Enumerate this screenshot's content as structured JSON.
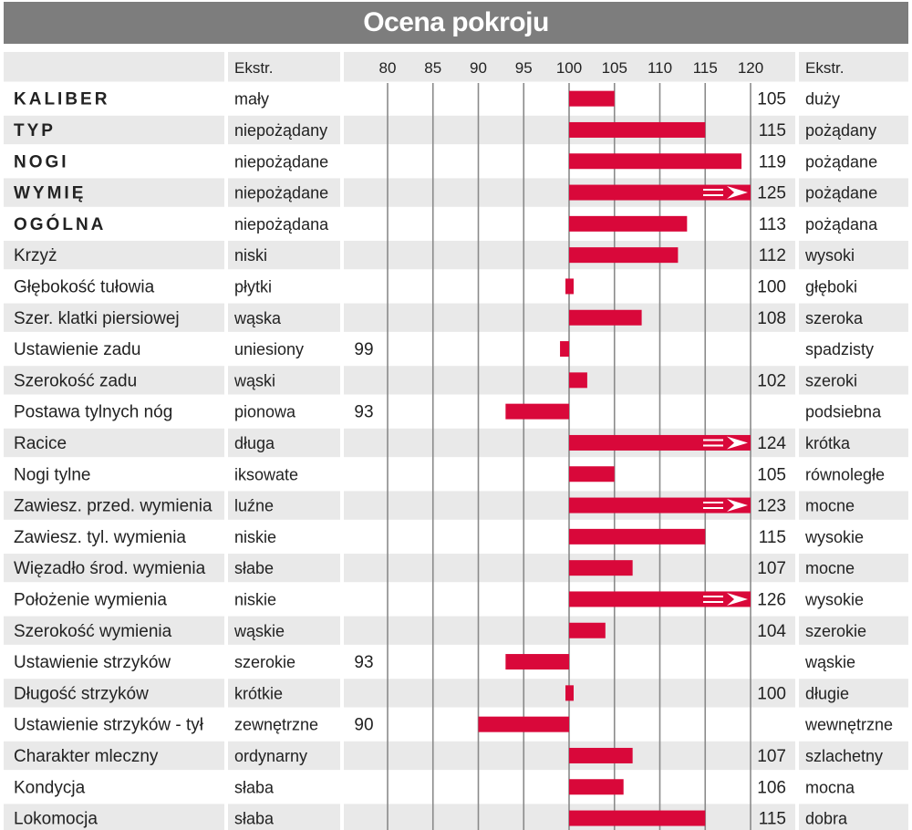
{
  "title": "Ocena pokroju",
  "header": {
    "left_extreme": "Ekstr.",
    "right_extreme": "Ekstr."
  },
  "colors": {
    "bar": "#d9083a",
    "title_bg": "#7d7d7d",
    "row_shade": "#e9e9e9",
    "grid": "#8a8a8a"
  },
  "chart_data": {
    "type": "bar",
    "orientation": "horizontal",
    "baseline": 100,
    "xlim": [
      80,
      120
    ],
    "ticks": [
      80,
      85,
      90,
      95,
      100,
      105,
      110,
      115,
      120
    ],
    "grid": true,
    "overflow_marker": "arrow at 120 when value exceeds axis",
    "rows": [
      {
        "label": "KALIBER",
        "bold": true,
        "low": "mały",
        "high": "duży",
        "value": 105
      },
      {
        "label": "TYP",
        "bold": true,
        "low": "niepożądany",
        "high": "pożądany",
        "value": 115
      },
      {
        "label": "NOGI",
        "bold": true,
        "low": "niepożądane",
        "high": "pożądane",
        "value": 119
      },
      {
        "label": "WYMIĘ",
        "bold": true,
        "low": "niepożądane",
        "high": "pożądane",
        "value": 125
      },
      {
        "label": "OGÓLNA",
        "bold": true,
        "low": "niepożądana",
        "high": "pożądana",
        "value": 113
      },
      {
        "label": "Krzyż",
        "bold": false,
        "low": "niski",
        "high": "wysoki",
        "value": 112
      },
      {
        "label": "Głębokość tułowia",
        "bold": false,
        "low": "płytki",
        "high": "głęboki",
        "value": 100
      },
      {
        "label": "Szer. klatki piersiowej",
        "bold": false,
        "low": "wąska",
        "high": "szeroka",
        "value": 108
      },
      {
        "label": "Ustawienie zadu",
        "bold": false,
        "low": "uniesiony",
        "high": "spadzisty",
        "value": 99
      },
      {
        "label": "Szerokość zadu",
        "bold": false,
        "low": "wąski",
        "high": "szeroki",
        "value": 102
      },
      {
        "label": "Postawa tylnych nóg",
        "bold": false,
        "low": "pionowa",
        "high": "podsiebna",
        "value": 93
      },
      {
        "label": "Racice",
        "bold": false,
        "low": "długa",
        "high": "krótka",
        "value": 124
      },
      {
        "label": "Nogi tylne",
        "bold": false,
        "low": "iksowate",
        "high": "równoległe",
        "value": 105
      },
      {
        "label": "Zawiesz. przed. wymienia",
        "bold": false,
        "low": "luźne",
        "high": "mocne",
        "value": 123
      },
      {
        "label": "Zawiesz. tyl. wymienia",
        "bold": false,
        "low": "niskie",
        "high": "wysokie",
        "value": 115
      },
      {
        "label": "Więzadło środ. wymienia",
        "bold": false,
        "low": "słabe",
        "high": "mocne",
        "value": 107
      },
      {
        "label": "Położenie wymienia",
        "bold": false,
        "low": "niskie",
        "high": "wysokie",
        "value": 126
      },
      {
        "label": "Szerokość wymienia",
        "bold": false,
        "low": "wąskie",
        "high": "szerokie",
        "value": 104
      },
      {
        "label": "Ustawienie strzyków",
        "bold": false,
        "low": "szerokie",
        "high": "wąskie",
        "value": 93
      },
      {
        "label": "Długość strzyków",
        "bold": false,
        "low": "krótkie",
        "high": "długie",
        "value": 100
      },
      {
        "label": "Ustawienie strzyków - tył",
        "bold": false,
        "low": "zewnętrzne",
        "high": "wewnętrzne",
        "value": 90
      },
      {
        "label": "Charakter mleczny",
        "bold": false,
        "low": "ordynarny",
        "high": "szlachetny",
        "value": 107
      },
      {
        "label": "Kondycja",
        "bold": false,
        "low": "słaba",
        "high": "mocna",
        "value": 106
      },
      {
        "label": "Lokomocja",
        "bold": false,
        "low": "słaba",
        "high": "dobra",
        "value": 115
      }
    ]
  }
}
